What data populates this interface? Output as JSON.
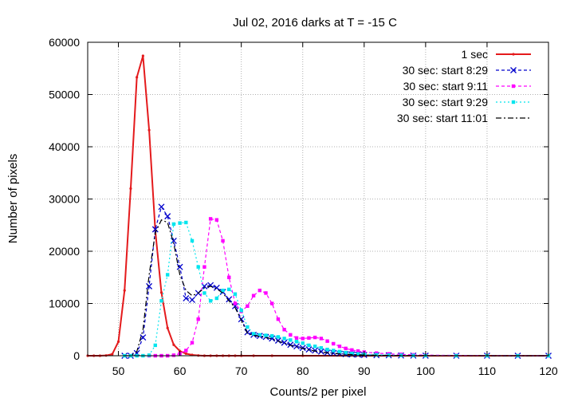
{
  "chart_data": {
    "type": "line",
    "title": "Jul 02, 2016 darks at T = -15 C",
    "xlabel": "Counts/2 per pixel",
    "ylabel": "Number of pixels",
    "xlim": [
      45,
      120
    ],
    "ylim": [
      0,
      60000
    ],
    "xticks": [
      50,
      60,
      70,
      80,
      90,
      100,
      110,
      120
    ],
    "yticks": [
      0,
      10000,
      20000,
      30000,
      40000,
      50000,
      60000
    ],
    "grid": true,
    "legend_position": "top-right",
    "series": [
      {
        "name": "1 sec",
        "color": "#e41a1c",
        "line_style": "solid",
        "marker": "dot",
        "x": [
          45,
          46,
          47,
          48,
          49,
          50,
          51,
          52,
          53,
          54,
          55,
          56,
          57,
          58,
          59,
          60,
          61,
          62,
          63,
          64,
          65,
          66,
          67,
          68,
          69,
          70,
          72,
          75,
          80,
          90,
          100,
          110,
          120
        ],
        "y": [
          0,
          0,
          0,
          50,
          300,
          2700,
          12500,
          32000,
          53300,
          57400,
          43200,
          24000,
          12100,
          5300,
          2100,
          900,
          400,
          150,
          50,
          0,
          0,
          0,
          0,
          0,
          0,
          0,
          0,
          0,
          0,
          0,
          0,
          0,
          0
        ]
      },
      {
        "name": "30 sec: start 8:29",
        "color": "#0000cc",
        "line_style": "dashed",
        "marker": "x",
        "x": [
          51,
          52,
          53,
          54,
          55,
          56,
          57,
          58,
          59,
          60,
          61,
          62,
          63,
          64,
          65,
          66,
          67,
          68,
          69,
          70,
          71,
          72,
          73,
          74,
          75,
          76,
          77,
          78,
          79,
          80,
          81,
          82,
          83,
          84,
          85,
          86,
          87,
          88,
          89,
          90,
          92,
          94,
          96,
          98,
          100,
          105,
          110,
          115,
          120
        ],
        "y": [
          0,
          0,
          500,
          3500,
          13300,
          24200,
          28500,
          26700,
          22000,
          17000,
          11000,
          10700,
          12000,
          13300,
          13500,
          13000,
          12200,
          10800,
          9500,
          7000,
          4500,
          4000,
          3800,
          3600,
          3300,
          2900,
          2500,
          2100,
          1800,
          1500,
          1200,
          1000,
          800,
          600,
          500,
          400,
          300,
          250,
          200,
          150,
          100,
          80,
          50,
          30,
          20,
          10,
          5,
          0,
          0
        ]
      },
      {
        "name": "30 sec: start 9:11",
        "color": "#ff00ff",
        "line_style": "dashed",
        "marker": "square",
        "x": [
          55,
          56,
          57,
          58,
          59,
          60,
          61,
          62,
          63,
          64,
          65,
          66,
          67,
          68,
          69,
          70,
          71,
          72,
          73,
          74,
          75,
          76,
          77,
          78,
          79,
          80,
          81,
          82,
          83,
          84,
          85,
          86,
          87,
          88,
          89,
          90,
          92,
          94,
          96,
          98,
          100,
          105,
          110,
          115,
          120
        ],
        "y": [
          0,
          0,
          0,
          0,
          100,
          400,
          1000,
          2500,
          7000,
          17000,
          26200,
          26000,
          22000,
          15000,
          10000,
          8500,
          9500,
          11500,
          12500,
          12000,
          10000,
          7000,
          5000,
          4000,
          3400,
          3300,
          3400,
          3500,
          3300,
          2800,
          2300,
          1800,
          1400,
          1100,
          900,
          700,
          500,
          350,
          250,
          180,
          120,
          60,
          30,
          10,
          0
        ]
      },
      {
        "name": "30 sec: start 9:29",
        "color": "#00e5ee",
        "line_style": "dotted",
        "marker": "square",
        "x": [
          51,
          52,
          53,
          54,
          55,
          56,
          57,
          58,
          59,
          60,
          61,
          62,
          63,
          64,
          65,
          66,
          67,
          68,
          69,
          70,
          71,
          72,
          73,
          74,
          75,
          76,
          77,
          78,
          79,
          80,
          81,
          82,
          83,
          84,
          85,
          86,
          87,
          88,
          89,
          90,
          92,
          94,
          96,
          98,
          100,
          105,
          110,
          115,
          120
        ],
        "y": [
          0,
          0,
          0,
          0,
          100,
          2000,
          10500,
          15500,
          25200,
          25400,
          25500,
          22000,
          17000,
          12000,
          10500,
          11000,
          12500,
          12700,
          11800,
          8700,
          5500,
          4200,
          4000,
          3900,
          3800,
          3600,
          3300,
          3000,
          2700,
          2400,
          2000,
          1800,
          1500,
          1200,
          1000,
          800,
          600,
          450,
          350,
          280,
          180,
          120,
          80,
          50,
          30,
          10,
          5,
          0,
          0
        ]
      },
      {
        "name": "30 sec: start 11:01",
        "color": "#000000",
        "line_style": "dashdot",
        "marker": "none",
        "x": [
          51,
          52,
          53,
          54,
          55,
          56,
          57,
          58,
          59,
          60,
          61,
          62,
          63,
          64,
          65,
          66,
          67,
          68,
          69,
          70,
          71,
          72,
          73,
          74,
          75,
          76,
          77,
          78,
          79,
          80,
          81,
          82,
          83,
          84,
          85,
          86,
          87,
          88,
          89,
          90,
          92,
          94,
          96,
          98,
          100,
          105,
          110,
          115,
          120
        ],
        "y": [
          0,
          0,
          800,
          5000,
          15500,
          23500,
          26000,
          25500,
          21500,
          15500,
          12500,
          11500,
          12000,
          13000,
          13300,
          12800,
          12000,
          10500,
          9200,
          6800,
          4300,
          3900,
          3700,
          3500,
          3200,
          2800,
          2400,
          2000,
          1700,
          1400,
          1100,
          900,
          700,
          550,
          450,
          350,
          280,
          220,
          180,
          140,
          90,
          70,
          45,
          25,
          15,
          8,
          3,
          0,
          0
        ]
      }
    ]
  }
}
